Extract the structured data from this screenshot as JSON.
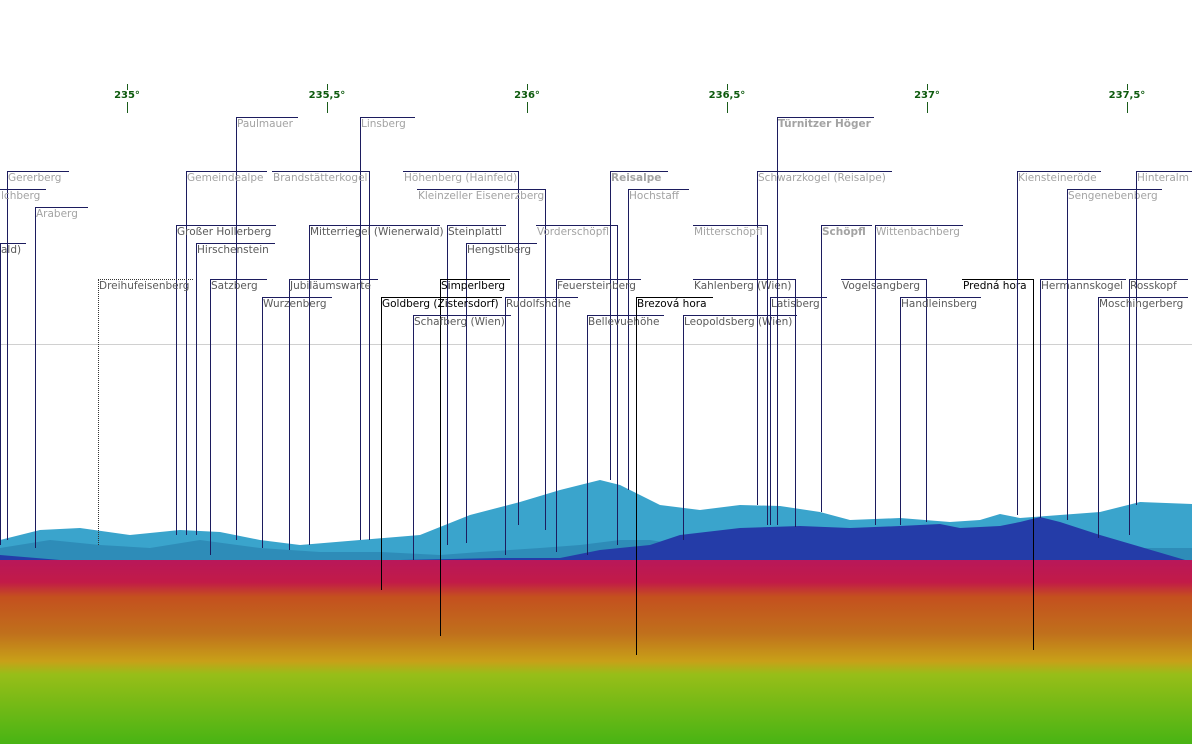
{
  "scale": {
    "ticks": [
      "235°",
      "235,5°",
      "236°",
      "236,5°",
      "237°",
      "237,5°"
    ]
  },
  "colors": {
    "tick": "#0d5a0d",
    "far_line": "#1c1c5e",
    "near_line": "#000000"
  },
  "peaks": [
    {
      "name": "Gererberg",
      "tone": "far"
    },
    {
      "name": "lchberg",
      "tone": "far"
    },
    {
      "name": "ald)",
      "tone": "mid"
    },
    {
      "name": "Araberg",
      "tone": "far"
    },
    {
      "name": "Paulmauer",
      "tone": "far"
    },
    {
      "name": "Linsberg",
      "tone": "far"
    },
    {
      "name": "Gemeindealpe",
      "tone": "far"
    },
    {
      "name": "Brandstätterkogel",
      "tone": "far"
    },
    {
      "name": "Großer Hollerberg",
      "tone": "mid"
    },
    {
      "name": "Hirschenstein",
      "tone": "mid"
    },
    {
      "name": "Mitterriegel (Wienerwald)",
      "tone": "mid"
    },
    {
      "name": "Steinplattl",
      "tone": "mid"
    },
    {
      "name": "Hengstlberg",
      "tone": "mid"
    },
    {
      "name": "Höhenberg (Hainfeld)",
      "tone": "far"
    },
    {
      "name": "Kleinzeller Eisenerzberg",
      "tone": "far"
    },
    {
      "name": "Reisalpe",
      "tone": "far",
      "bold": true
    },
    {
      "name": "Hochstaff",
      "tone": "far"
    },
    {
      "name": "Vorderschöpfl",
      "tone": "far"
    },
    {
      "name": "Dreihufeisenberg",
      "tone": "mid",
      "dotted": true
    },
    {
      "name": "Satzberg",
      "tone": "mid"
    },
    {
      "name": "Jubiläumswarte",
      "tone": "mid"
    },
    {
      "name": "Wurzenberg",
      "tone": "mid"
    },
    {
      "name": "Simperlberg",
      "tone": "near"
    },
    {
      "name": "Goldberg (Zistersdorf)",
      "tone": "near"
    },
    {
      "name": "Schafberg (Wien)",
      "tone": "mid"
    },
    {
      "name": "Rudolfshöhe",
      "tone": "mid"
    },
    {
      "name": "Feuersteinberg",
      "tone": "mid"
    },
    {
      "name": "Bellevuehöhe",
      "tone": "mid"
    },
    {
      "name": "Brezová hora",
      "tone": "near"
    },
    {
      "name": "Kahlenberg (Wien)",
      "tone": "mid"
    },
    {
      "name": "Leopoldsberg (Wien)",
      "tone": "mid"
    },
    {
      "name": "Latisberg",
      "tone": "mid"
    },
    {
      "name": "Türnitzer Höger",
      "tone": "far",
      "bold": true
    },
    {
      "name": "Schwarzkogel (Reisalpe)",
      "tone": "far"
    },
    {
      "name": "Mitterschöpfl",
      "tone": "far"
    },
    {
      "name": "Schöpfl",
      "tone": "far",
      "bold": true
    },
    {
      "name": "Wittenbachberg",
      "tone": "far"
    },
    {
      "name": "Vogelsangberg",
      "tone": "mid"
    },
    {
      "name": "Handleinsberg",
      "tone": "mid"
    },
    {
      "name": "Predná hora",
      "tone": "near"
    },
    {
      "name": "Kiensteineröde",
      "tone": "far"
    },
    {
      "name": "Hermannskogel",
      "tone": "mid"
    },
    {
      "name": "Sengenebenberg",
      "tone": "far"
    },
    {
      "name": "Hinteralm (A",
      "tone": "far"
    },
    {
      "name": "Rosskopf",
      "tone": "mid"
    },
    {
      "name": "Moschingerberg",
      "tone": "mid"
    }
  ]
}
